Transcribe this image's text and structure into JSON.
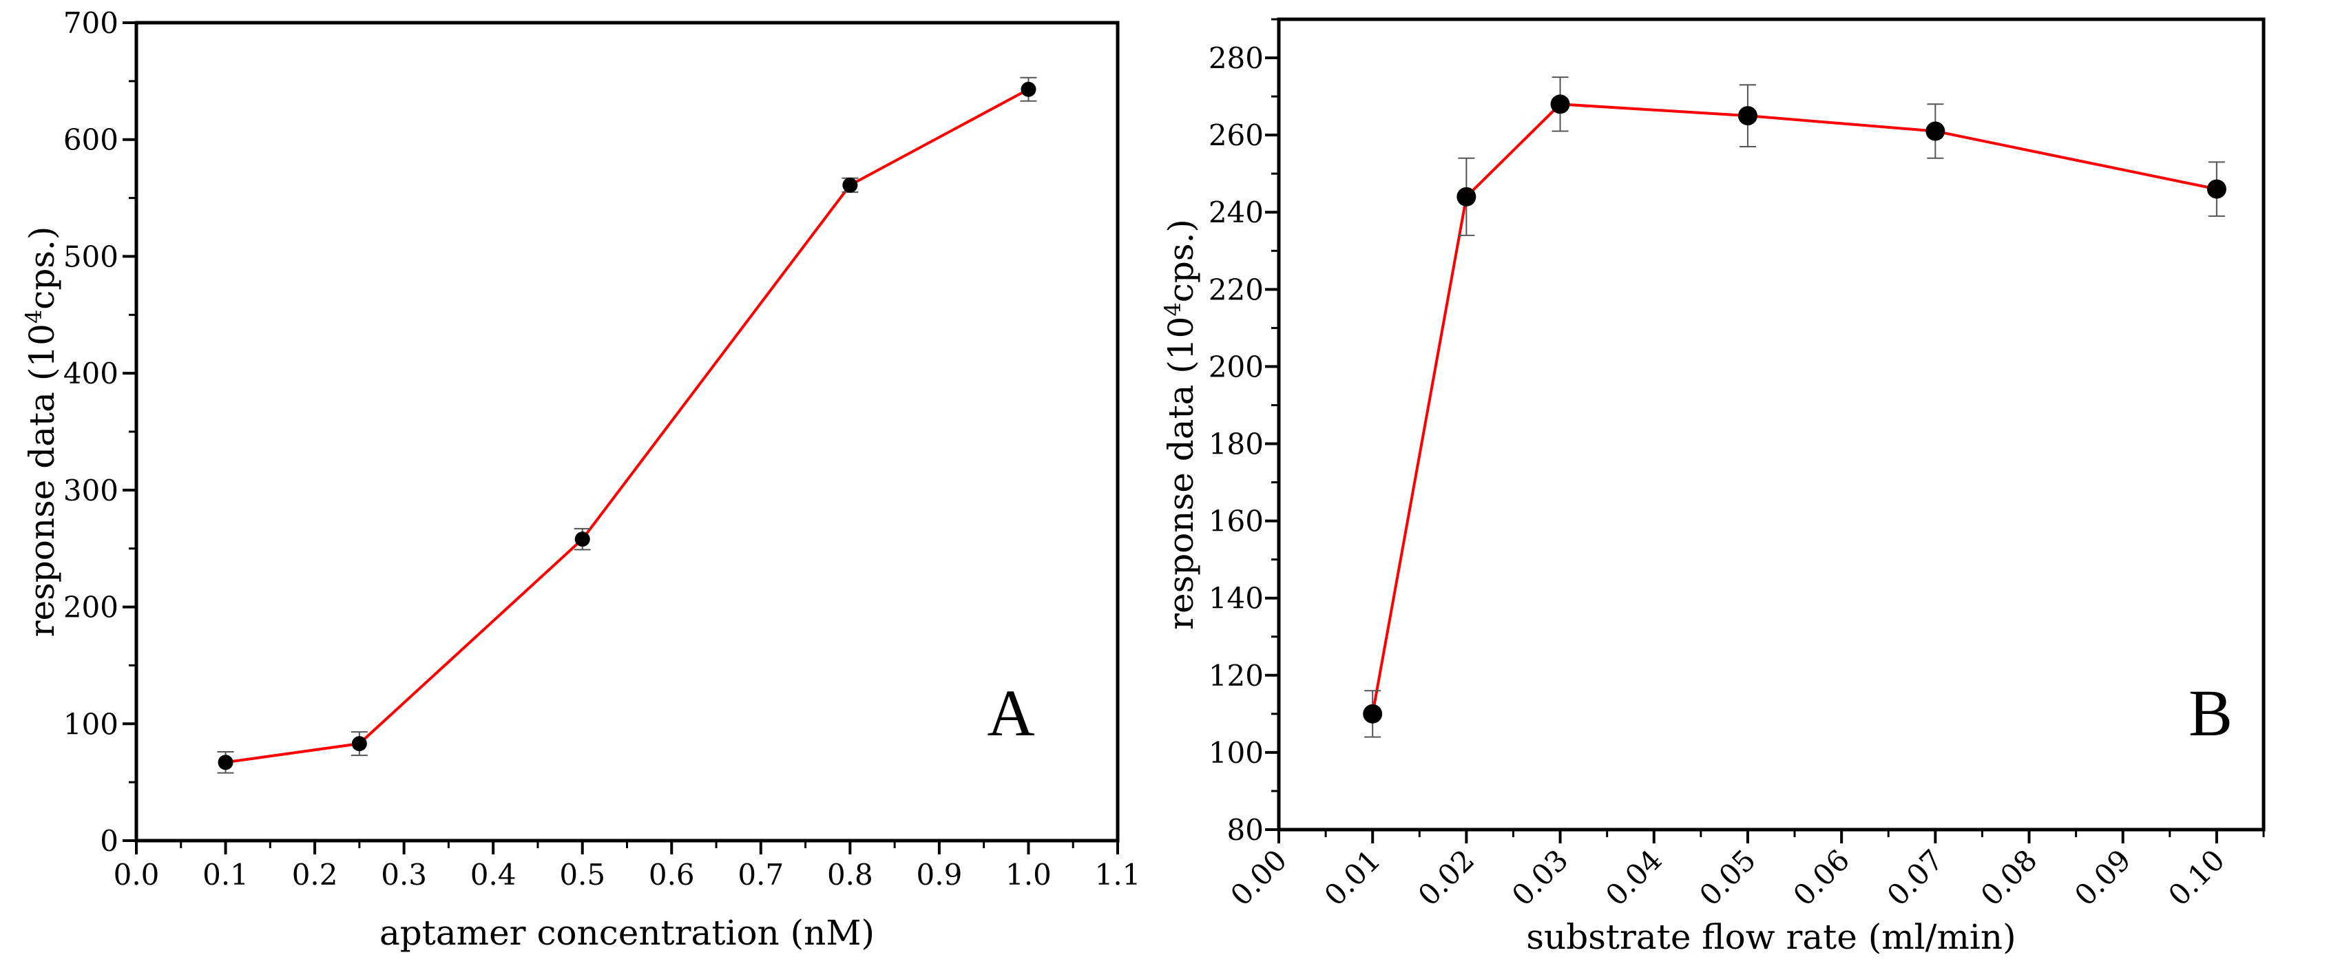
{
  "chart_data": [
    {
      "type": "line",
      "panel_label": "A",
      "xlabel": "aptamer concentration (nM)",
      "ylabel_main": "response data (10",
      "ylabel_sup": "4",
      "ylabel_tail": "cps.)",
      "xlim": [
        0.0,
        1.1
      ],
      "ylim": [
        0,
        700
      ],
      "x_ticks": [
        "0.0",
        "0.1",
        "0.2",
        "0.3",
        "0.4",
        "0.5",
        "0.6",
        "0.7",
        "0.8",
        "0.9",
        "1.0",
        "1.1"
      ],
      "x_tick_values": [
        0.0,
        0.1,
        0.2,
        0.3,
        0.4,
        0.5,
        0.6,
        0.7,
        0.8,
        0.9,
        1.0,
        1.1
      ],
      "y_ticks": [
        "0",
        "100",
        "200",
        "300",
        "400",
        "500",
        "600",
        "700"
      ],
      "y_tick_values": [
        0,
        100,
        200,
        300,
        400,
        500,
        600,
        700
      ],
      "y_minor_step": 50,
      "x_minor_step": 0.05,
      "grid": false,
      "line_color": "#ff0000",
      "marker_color": "#000000",
      "x": [
        0.1,
        0.25,
        0.5,
        0.8,
        1.0
      ],
      "y": [
        67,
        83,
        258,
        561,
        643
      ],
      "y_err": [
        9,
        10,
        9,
        6,
        10
      ]
    },
    {
      "type": "line",
      "panel_label": "B",
      "xlabel": "substrate flow rate (ml/min)",
      "ylabel_main": "response data (10",
      "ylabel_sup": "4",
      "ylabel_tail": "cps.)",
      "xlim": [
        0.0,
        0.105
      ],
      "ylim": [
        80,
        290
      ],
      "x_ticks": [
        "0.00",
        "0.01",
        "0.02",
        "0.03",
        "0.04",
        "0.05",
        "0.06",
        "0.07",
        "0.08",
        "0.09",
        "0.10"
      ],
      "x_tick_values": [
        0.0,
        0.01,
        0.02,
        0.03,
        0.04,
        0.05,
        0.06,
        0.07,
        0.08,
        0.09,
        0.1
      ],
      "y_ticks": [
        "80",
        "100",
        "120",
        "140",
        "160",
        "180",
        "200",
        "220",
        "240",
        "260",
        "280"
      ],
      "y_tick_values": [
        80,
        100,
        120,
        140,
        160,
        180,
        200,
        220,
        240,
        260,
        280
      ],
      "y_minor_step": 10,
      "x_minor_step": 0.005,
      "grid": false,
      "line_color": "#ff0000",
      "marker_color": "#000000",
      "x": [
        0.01,
        0.02,
        0.03,
        0.05,
        0.07,
        0.1
      ],
      "y": [
        110,
        244,
        268,
        265,
        261,
        246
      ],
      "y_err": [
        6,
        10,
        7,
        8,
        7,
        7
      ]
    }
  ]
}
